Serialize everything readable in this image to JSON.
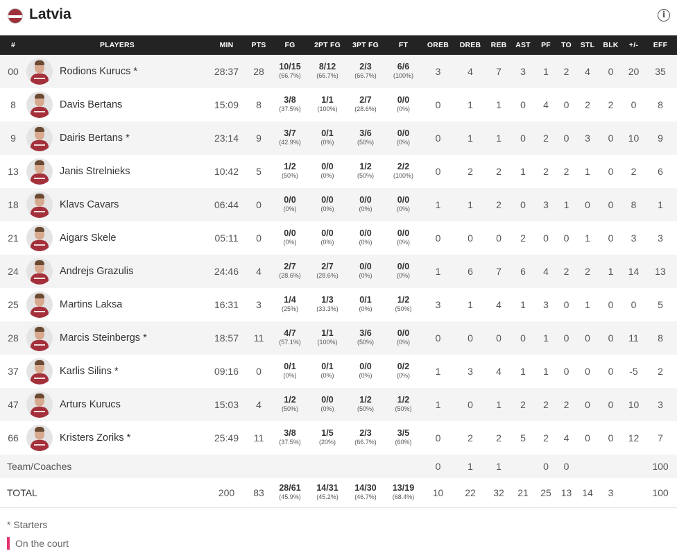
{
  "team": {
    "name": "Latvia",
    "flag_colors": [
      "#9e3039",
      "#ffffff"
    ]
  },
  "columns": [
    "#",
    "PLAYERS",
    "MIN",
    "PTS",
    "FG",
    "2PT FG",
    "3PT FG",
    "FT",
    "OREB",
    "DREB",
    "REB",
    "AST",
    "PF",
    "TO",
    "STL",
    "BLK",
    "+/-",
    "EFF"
  ],
  "players": [
    {
      "no": "00",
      "name": "Rodions Kurucs *",
      "min": "28:37",
      "pts": "28",
      "fg": "10/15",
      "fg_pct": "(66.7%)",
      "fg2": "8/12",
      "fg2_pct": "(66.7%)",
      "fg3": "2/3",
      "fg3_pct": "(66.7%)",
      "ft": "6/6",
      "ft_pct": "(100%)",
      "oreb": "3",
      "dreb": "4",
      "reb": "7",
      "ast": "3",
      "pf": "1",
      "to": "2",
      "stl": "4",
      "blk": "0",
      "pm": "20",
      "eff": "35"
    },
    {
      "no": "8",
      "name": "Davis Bertans",
      "min": "15:09",
      "pts": "8",
      "fg": "3/8",
      "fg_pct": "(37.5%)",
      "fg2": "1/1",
      "fg2_pct": "(100%)",
      "fg3": "2/7",
      "fg3_pct": "(28.6%)",
      "ft": "0/0",
      "ft_pct": "(0%)",
      "oreb": "0",
      "dreb": "1",
      "reb": "1",
      "ast": "0",
      "pf": "4",
      "to": "0",
      "stl": "2",
      "blk": "2",
      "pm": "0",
      "eff": "8"
    },
    {
      "no": "9",
      "name": "Dairis Bertans *",
      "min": "23:14",
      "pts": "9",
      "fg": "3/7",
      "fg_pct": "(42.9%)",
      "fg2": "0/1",
      "fg2_pct": "(0%)",
      "fg3": "3/6",
      "fg3_pct": "(50%)",
      "ft": "0/0",
      "ft_pct": "(0%)",
      "oreb": "0",
      "dreb": "1",
      "reb": "1",
      "ast": "0",
      "pf": "2",
      "to": "0",
      "stl": "3",
      "blk": "0",
      "pm": "10",
      "eff": "9"
    },
    {
      "no": "13",
      "name": "Janis Strelnieks",
      "min": "10:42",
      "pts": "5",
      "fg": "1/2",
      "fg_pct": "(50%)",
      "fg2": "0/0",
      "fg2_pct": "(0%)",
      "fg3": "1/2",
      "fg3_pct": "(50%)",
      "ft": "2/2",
      "ft_pct": "(100%)",
      "oreb": "0",
      "dreb": "2",
      "reb": "2",
      "ast": "1",
      "pf": "2",
      "to": "2",
      "stl": "1",
      "blk": "0",
      "pm": "2",
      "eff": "6"
    },
    {
      "no": "18",
      "name": "Klavs Cavars",
      "min": "06:44",
      "pts": "0",
      "fg": "0/0",
      "fg_pct": "(0%)",
      "fg2": "0/0",
      "fg2_pct": "(0%)",
      "fg3": "0/0",
      "fg3_pct": "(0%)",
      "ft": "0/0",
      "ft_pct": "(0%)",
      "oreb": "1",
      "dreb": "1",
      "reb": "2",
      "ast": "0",
      "pf": "3",
      "to": "1",
      "stl": "0",
      "blk": "0",
      "pm": "8",
      "eff": "1"
    },
    {
      "no": "21",
      "name": "Aigars Skele",
      "min": "05:11",
      "pts": "0",
      "fg": "0/0",
      "fg_pct": "(0%)",
      "fg2": "0/0",
      "fg2_pct": "(0%)",
      "fg3": "0/0",
      "fg3_pct": "(0%)",
      "ft": "0/0",
      "ft_pct": "(0%)",
      "oreb": "0",
      "dreb": "0",
      "reb": "0",
      "ast": "2",
      "pf": "0",
      "to": "0",
      "stl": "1",
      "blk": "0",
      "pm": "3",
      "eff": "3"
    },
    {
      "no": "24",
      "name": "Andrejs Grazulis",
      "min": "24:46",
      "pts": "4",
      "fg": "2/7",
      "fg_pct": "(28.6%)",
      "fg2": "2/7",
      "fg2_pct": "(28.6%)",
      "fg3": "0/0",
      "fg3_pct": "(0%)",
      "ft": "0/0",
      "ft_pct": "(0%)",
      "oreb": "1",
      "dreb": "6",
      "reb": "7",
      "ast": "6",
      "pf": "4",
      "to": "2",
      "stl": "2",
      "blk": "1",
      "pm": "14",
      "eff": "13"
    },
    {
      "no": "25",
      "name": "Martins Laksa",
      "min": "16:31",
      "pts": "3",
      "fg": "1/4",
      "fg_pct": "(25%)",
      "fg2": "1/3",
      "fg2_pct": "(33.3%)",
      "fg3": "0/1",
      "fg3_pct": "(0%)",
      "ft": "1/2",
      "ft_pct": "(50%)",
      "oreb": "3",
      "dreb": "1",
      "reb": "4",
      "ast": "1",
      "pf": "3",
      "to": "0",
      "stl": "1",
      "blk": "0",
      "pm": "0",
      "eff": "5"
    },
    {
      "no": "28",
      "name": "Marcis Steinbergs *",
      "min": "18:57",
      "pts": "11",
      "fg": "4/7",
      "fg_pct": "(57.1%)",
      "fg2": "1/1",
      "fg2_pct": "(100%)",
      "fg3": "3/6",
      "fg3_pct": "(50%)",
      "ft": "0/0",
      "ft_pct": "(0%)",
      "oreb": "0",
      "dreb": "0",
      "reb": "0",
      "ast": "0",
      "pf": "1",
      "to": "0",
      "stl": "0",
      "blk": "0",
      "pm": "11",
      "eff": "8"
    },
    {
      "no": "37",
      "name": "Karlis Silins *",
      "min": "09:16",
      "pts": "0",
      "fg": "0/1",
      "fg_pct": "(0%)",
      "fg2": "0/1",
      "fg2_pct": "(0%)",
      "fg3": "0/0",
      "fg3_pct": "(0%)",
      "ft": "0/2",
      "ft_pct": "(0%)",
      "oreb": "1",
      "dreb": "3",
      "reb": "4",
      "ast": "1",
      "pf": "1",
      "to": "0",
      "stl": "0",
      "blk": "0",
      "pm": "-5",
      "eff": "2"
    },
    {
      "no": "47",
      "name": "Arturs Kurucs",
      "min": "15:03",
      "pts": "4",
      "fg": "1/2",
      "fg_pct": "(50%)",
      "fg2": "0/0",
      "fg2_pct": "(0%)",
      "fg3": "1/2",
      "fg3_pct": "(50%)",
      "ft": "1/2",
      "ft_pct": "(50%)",
      "oreb": "1",
      "dreb": "0",
      "reb": "1",
      "ast": "2",
      "pf": "2",
      "to": "2",
      "stl": "0",
      "blk": "0",
      "pm": "10",
      "eff": "3"
    },
    {
      "no": "66",
      "name": "Kristers Zoriks *",
      "min": "25:49",
      "pts": "11",
      "fg": "3/8",
      "fg_pct": "(37.5%)",
      "fg2": "1/5",
      "fg2_pct": "(20%)",
      "fg3": "2/3",
      "fg3_pct": "(66.7%)",
      "ft": "3/5",
      "ft_pct": "(60%)",
      "oreb": "0",
      "dreb": "2",
      "reb": "2",
      "ast": "5",
      "pf": "2",
      "to": "4",
      "stl": "0",
      "blk": "0",
      "pm": "12",
      "eff": "7"
    }
  ],
  "team_row": {
    "label": "Team/Coaches",
    "oreb": "0",
    "dreb": "1",
    "reb": "1",
    "ast": "",
    "pf": "0",
    "to": "0",
    "stl": "",
    "blk": "",
    "pm": "",
    "eff": "100"
  },
  "total_row": {
    "label": "TOTAL",
    "min": "200",
    "pts": "83",
    "fg": "28/61",
    "fg_pct": "(45.9%)",
    "fg2": "14/31",
    "fg2_pct": "(45.2%)",
    "fg3": "14/30",
    "fg3_pct": "(46.7%)",
    "ft": "13/19",
    "ft_pct": "(68.4%)",
    "oreb": "10",
    "dreb": "22",
    "reb": "32",
    "ast": "21",
    "pf": "25",
    "to": "13",
    "stl": "14",
    "blk": "3",
    "pm": "",
    "eff": "100"
  },
  "legend": {
    "starters": "* Starters",
    "on_court": "On the court",
    "on_court_color": "#e5336d"
  },
  "icons": {
    "info": "info-icon",
    "flag": "latvia-flag-icon"
  }
}
